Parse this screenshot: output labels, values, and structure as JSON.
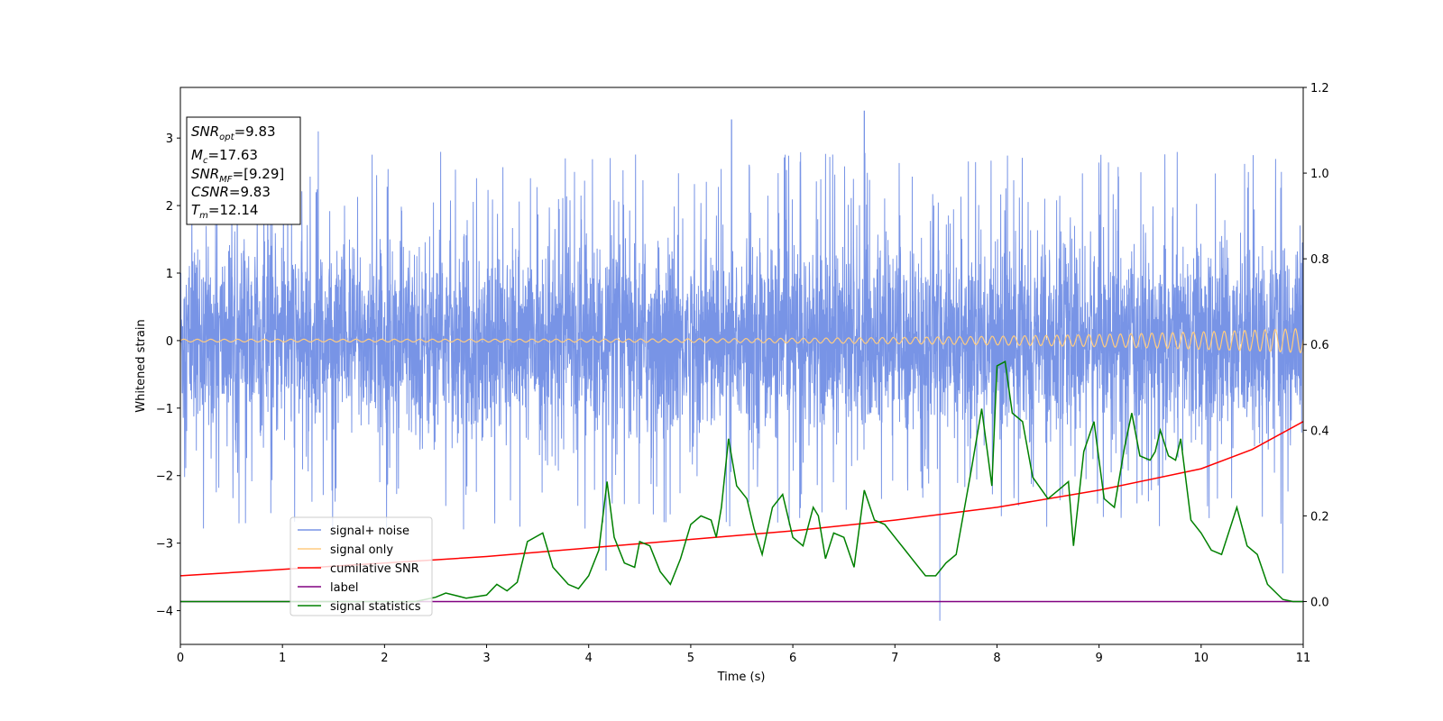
{
  "chart_data": {
    "type": "line",
    "xlabel": "Time (s)",
    "ylabel": "Whitened strain",
    "xlim": [
      0,
      11
    ],
    "ylim_left": [
      -4.5,
      3.75
    ],
    "ylim_right": [
      -0.1,
      1.2
    ],
    "x_ticks": [
      "0",
      "1",
      "2",
      "3",
      "4",
      "5",
      "6",
      "7",
      "8",
      "9",
      "10",
      "11"
    ],
    "y_ticks_left": [
      "3",
      "2",
      "1",
      "0",
      "−1",
      "−2",
      "−3",
      "−4"
    ],
    "y_ticks_left_values": [
      3,
      2,
      1,
      0,
      -1,
      -2,
      -3,
      -4
    ],
    "y_ticks_right": [
      "1.2",
      "1.0",
      "0.8",
      "0.6",
      "0.4",
      "0.2",
      "0.0"
    ],
    "y_ticks_right_values": [
      1.2,
      1.0,
      0.8,
      0.6,
      0.4,
      0.2,
      0.0
    ],
    "info_box": {
      "snr_opt": {
        "base": "SNR",
        "sub": "opt",
        "value": "=9.83"
      },
      "mc": {
        "base": "M",
        "sub": "c",
        "value": "=17.63"
      },
      "snr_mf": {
        "base": "SNR",
        "sub": "MF",
        "value": "=[9.29]"
      },
      "csnr": {
        "base": "CSNR",
        "value": "=9.83"
      },
      "tm": {
        "base": "T",
        "sub": "m",
        "value": "=12.14"
      }
    },
    "legend": {
      "placement": "lower-left",
      "entries": [
        {
          "label": "signal+ noise",
          "color": "#7894e6"
        },
        {
          "label": "signal only",
          "color": "#ffcc80"
        },
        {
          "label": "cumilative SNR",
          "color": "#ff0000"
        },
        {
          "label": "label",
          "color": "#800080"
        },
        {
          "label": "signal statistics",
          "color": "#008000"
        }
      ]
    },
    "series": [
      {
        "name": "signal+ noise",
        "axis": "left",
        "color": "#7894e6",
        "note_envelope": "dense noise, range approx -4.1 to 3.4, typical peaks +/-2.5",
        "noise_amplitude": 1.6,
        "extreme_spikes": [
          [
            1.35,
            3.1
          ],
          [
            5.4,
            3.27
          ],
          [
            6.7,
            3.4
          ],
          [
            7.44,
            -4.15
          ],
          [
            4.17,
            -3.4
          ],
          [
            10.8,
            -3.45
          ]
        ]
      },
      {
        "name": "signal only",
        "axis": "left",
        "color": "#ffcc80",
        "note": "chirp centered at 0, amplitude growing toward 11 s",
        "amplitude_start": 0.02,
        "amplitude_end": 0.18
      },
      {
        "name": "cumilative SNR",
        "axis": "right",
        "color": "#ff0000",
        "x": [
          0,
          1,
          2,
          3,
          4,
          5,
          6,
          7,
          8,
          9,
          10,
          10.5,
          11
        ],
        "y": [
          0.06,
          0.075,
          0.09,
          0.105,
          0.125,
          0.145,
          0.165,
          0.19,
          0.22,
          0.26,
          0.31,
          0.355,
          0.42
        ]
      },
      {
        "name": "label",
        "axis": "right",
        "color": "#800080",
        "x": [
          0,
          11
        ],
        "y": [
          0.0,
          0.0
        ]
      },
      {
        "name": "signal statistics",
        "axis": "right",
        "color": "#008000",
        "x": [
          0,
          1,
          2,
          2.3,
          2.5,
          2.6,
          2.8,
          3.0,
          3.1,
          3.2,
          3.3,
          3.4,
          3.55,
          3.65,
          3.8,
          3.9,
          4.0,
          4.1,
          4.18,
          4.25,
          4.35,
          4.45,
          4.5,
          4.6,
          4.7,
          4.8,
          4.9,
          5.0,
          5.1,
          5.2,
          5.25,
          5.3,
          5.37,
          5.45,
          5.55,
          5.62,
          5.7,
          5.8,
          5.9,
          6.0,
          6.1,
          6.2,
          6.25,
          6.32,
          6.4,
          6.5,
          6.6,
          6.7,
          6.8,
          6.9,
          7.0,
          7.1,
          7.2,
          7.3,
          7.4,
          7.5,
          7.6,
          7.75,
          7.85,
          7.95,
          8.0,
          8.08,
          8.15,
          8.25,
          8.35,
          8.5,
          8.6,
          8.7,
          8.75,
          8.85,
          8.95,
          9.05,
          9.15,
          9.25,
          9.32,
          9.4,
          9.5,
          9.55,
          9.6,
          9.68,
          9.75,
          9.8,
          9.9,
          10.0,
          10.1,
          10.2,
          10.35,
          10.45,
          10.55,
          10.65,
          10.8,
          10.9,
          11.0
        ],
        "y": [
          0.0,
          0.0,
          0.0,
          0.0,
          0.01,
          0.02,
          0.008,
          0.015,
          0.04,
          0.025,
          0.045,
          0.14,
          0.16,
          0.08,
          0.04,
          0.03,
          0.06,
          0.12,
          0.28,
          0.15,
          0.09,
          0.08,
          0.14,
          0.13,
          0.07,
          0.04,
          0.1,
          0.18,
          0.2,
          0.19,
          0.15,
          0.22,
          0.38,
          0.27,
          0.24,
          0.17,
          0.11,
          0.22,
          0.25,
          0.15,
          0.13,
          0.22,
          0.2,
          0.1,
          0.16,
          0.15,
          0.08,
          0.26,
          0.19,
          0.18,
          0.15,
          0.12,
          0.09,
          0.06,
          0.06,
          0.09,
          0.11,
          0.31,
          0.45,
          0.27,
          0.55,
          0.56,
          0.44,
          0.42,
          0.29,
          0.24,
          0.26,
          0.28,
          0.13,
          0.35,
          0.42,
          0.24,
          0.22,
          0.36,
          0.44,
          0.34,
          0.33,
          0.35,
          0.4,
          0.34,
          0.33,
          0.38,
          0.19,
          0.16,
          0.12,
          0.11,
          0.22,
          0.13,
          0.11,
          0.04,
          0.005,
          0.0,
          0.0
        ]
      }
    ]
  }
}
